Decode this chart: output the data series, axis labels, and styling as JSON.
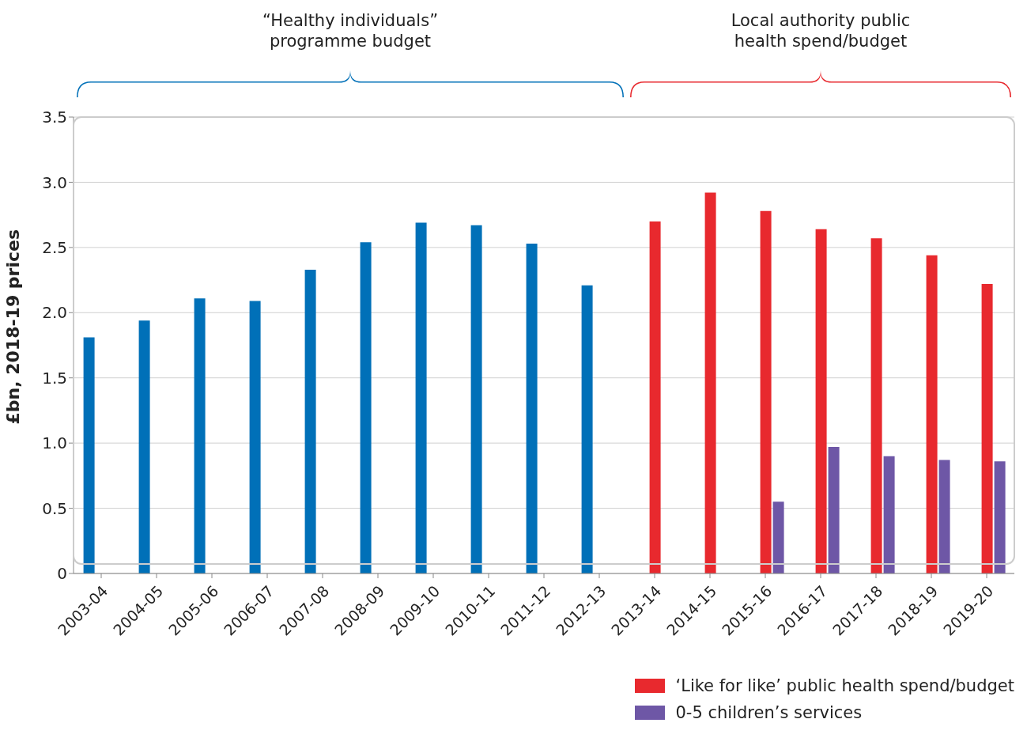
{
  "chart_data": {
    "type": "bar",
    "ylabel": "£bn, 2018-19 prices",
    "annotations": [
      "“Healthy individuals” programme budget",
      "Local authority public health spend/budget"
    ],
    "categories": [
      "2003-04",
      "2004-05",
      "2005-06",
      "2006-07",
      "2007-08",
      "2008-09",
      "2009-10",
      "2010-11",
      "2011-12",
      "2012-13",
      "2013-14",
      "2014-15",
      "2015-16",
      "2016-17",
      "2017-18",
      "2018-19",
      "2019-20"
    ],
    "series": [
      {
        "color": "#0070b8",
        "values": [
          1.81,
          1.94,
          2.11,
          2.09,
          2.33,
          2.54,
          2.69,
          2.67,
          2.53,
          2.21,
          null,
          null,
          null,
          null,
          null,
          null,
          null
        ]
      },
      {
        "name": "‘Like for like’ public health spend/budget",
        "color": "#e8292e",
        "values": [
          null,
          null,
          null,
          null,
          null,
          null,
          null,
          null,
          null,
          null,
          2.7,
          2.92,
          2.78,
          2.64,
          2.57,
          2.44,
          2.22
        ]
      },
      {
        "name": "0-5 children’s services",
        "color": "#6e57a6",
        "values": [
          null,
          null,
          null,
          null,
          null,
          null,
          null,
          null,
          null,
          null,
          null,
          null,
          0.55,
          0.97,
          0.9,
          0.87,
          0.86
        ]
      }
    ],
    "ylim": [
      0,
      3.5
    ],
    "yticks": [
      0,
      {
        "value": 0.5,
        "label": "0.5"
      },
      {
        "value": 1,
        "label": "1.0"
      },
      {
        "value": 1.5,
        "label": "1.5"
      },
      {
        "value": 2,
        "label": "2.0"
      },
      {
        "value": 2.5,
        "label": "2.5"
      },
      {
        "value": 3,
        "label": "3.0"
      },
      {
        "value": 3.5,
        "label": "3.5"
      }
    ],
    "grid": "y",
    "legend": "bottom right"
  }
}
